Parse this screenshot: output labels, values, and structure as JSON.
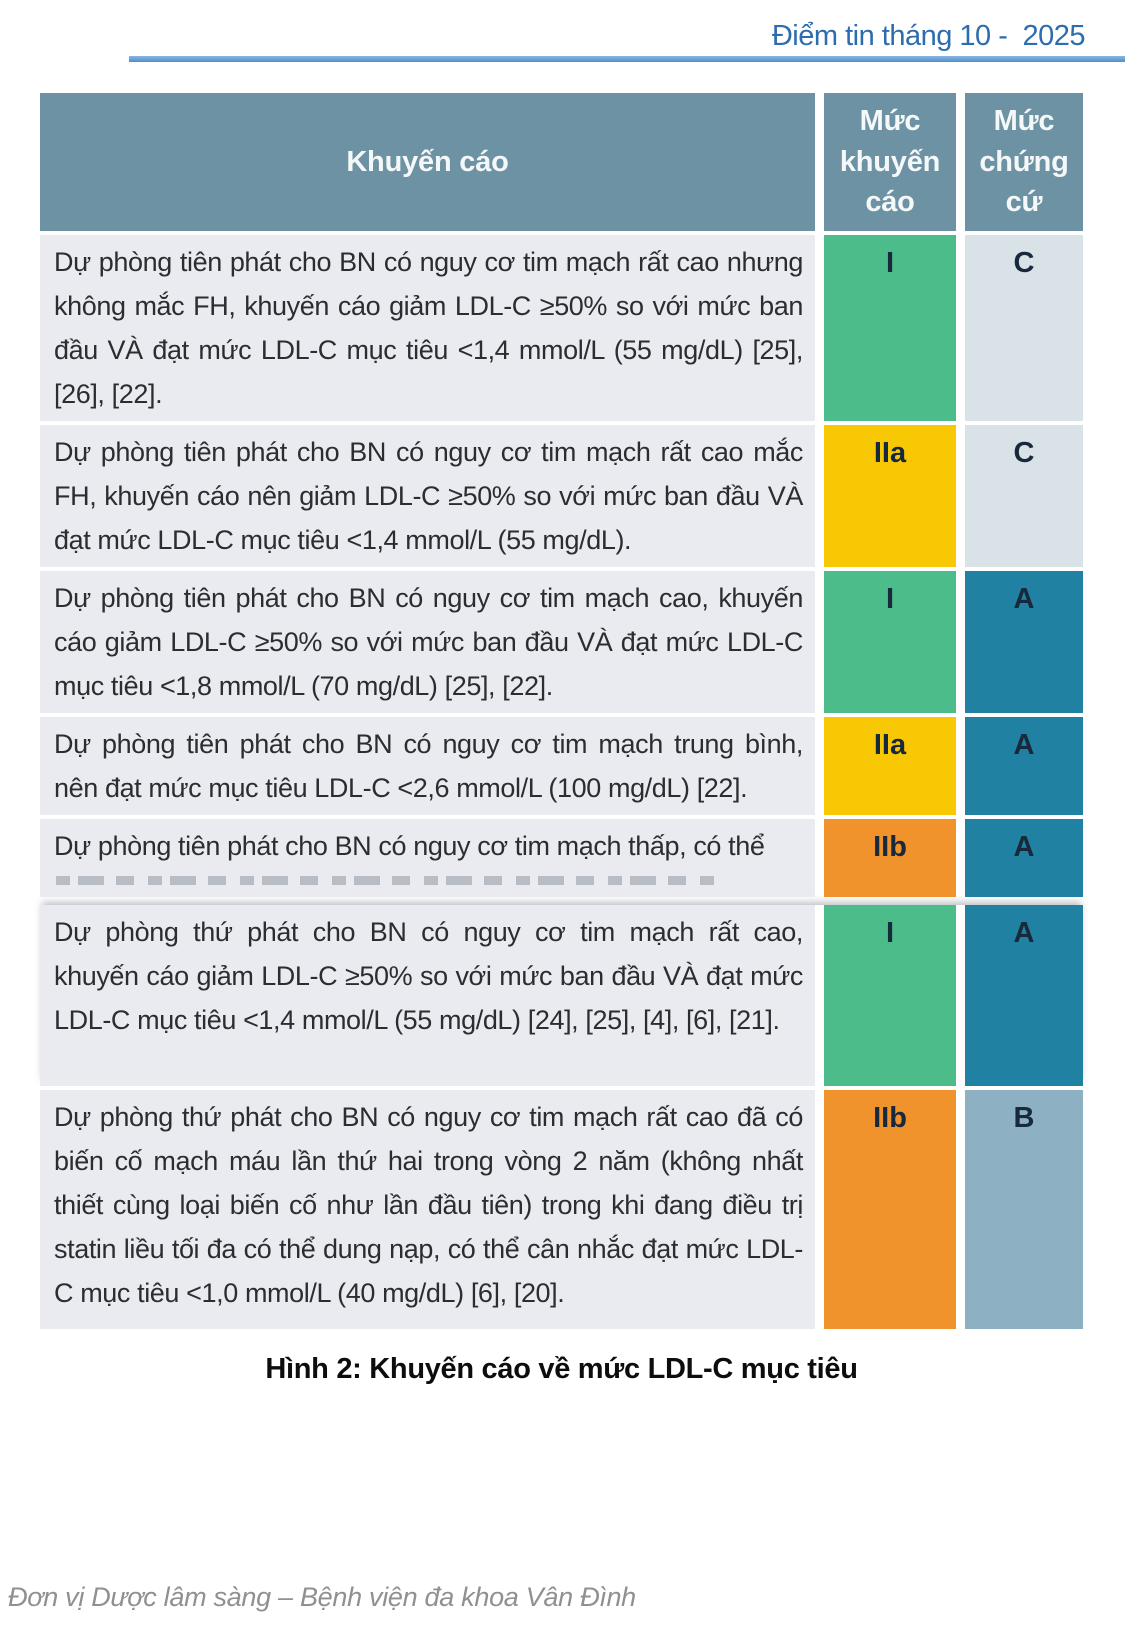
{
  "page": {
    "header_title": "Điểm tin tháng 10 -  2025",
    "caption": "Hình 2: Khuyến cáo về mức LDL-C mục tiêu",
    "footer": "Đơn vị Dược lâm sàng – Bệnh viện đa khoa Vân Đình"
  },
  "colors": {
    "title_blue": "#2d6daf",
    "rule_blue": "#5b9bd5",
    "table_header_bg": "#6d92a3",
    "row_bg": "#e9ebf1",
    "class_I_green": "#4dbc8b",
    "class_IIa_yellow": "#f9c805",
    "class_IIb_orange": "#f0932d",
    "evidence_A_teal": "#2181a2",
    "evidence_B_blue_gray": "#8db1c2",
    "evidence_C_light": "#d9e2e6"
  },
  "table": {
    "columns": [
      "Khuyến cáo",
      "Mức khuyến cáo",
      "Mức chứng cứ"
    ],
    "rows": [
      {
        "text": "Dự phòng tiên phát cho BN có nguy cơ tim mạch rất cao nhưng không mắc FH, khuyến cáo giảm LDL-C ≥50% so với mức ban đầu VÀ đạt mức LDL-C mục tiêu <1,4 mmol/L (55 mg/dL) [25], [26], [22].",
        "rec": "I",
        "ev": "C",
        "rec_color": "#4dbc8b",
        "ev_color": "#d9e2e6",
        "truncated": false
      },
      {
        "text": "Dự phòng tiên phát cho BN có nguy cơ tim mạch rất cao mắc FH, khuyến cáo nên giảm LDL-C ≥50% so với mức ban đầu VÀ đạt mức LDL-C mục tiêu <1,4 mmol/L (55 mg/dL).",
        "rec": "IIa",
        "ev": "C",
        "rec_color": "#f9c805",
        "ev_color": "#d9e2e6",
        "truncated": false
      },
      {
        "text": "Dự phòng tiên phát cho BN có nguy cơ tim mạch cao, khuyến cáo giảm LDL-C ≥50% so với mức ban đầu VÀ đạt mức LDL-C mục tiêu <1,8 mmol/L (70 mg/dL) [25], [22].",
        "rec": "I",
        "ev": "A",
        "rec_color": "#4dbc8b",
        "ev_color": "#2181a2",
        "truncated": false
      },
      {
        "text": "Dự phòng tiên phát cho BN có nguy cơ tim mạch trung bình, nên đạt mức mục tiêu LDL-C <2,6 mmol/L (100 mg/dL) [22].",
        "rec": "IIa",
        "ev": "A",
        "rec_color": "#f9c805",
        "ev_color": "#2181a2",
        "truncated": false
      },
      {
        "text": "Dự phòng tiên phát cho BN có nguy cơ tim mạch thấp, có thể",
        "rec": "IIb",
        "ev": "A",
        "rec_color": "#f0932d",
        "ev_color": "#2181a2",
        "truncated": true
      },
      {
        "text": "Dự phòng thứ phát cho BN có nguy cơ tim mạch rất cao, khuyến cáo giảm LDL-C ≥50% so với mức ban đầu VÀ đạt mức LDL-C mục tiêu <1,4 mmol/L (55 mg/dL) [24], [25], [4], [6], [21].",
        "rec": "I",
        "ev": "A",
        "rec_color": "#4dbc8b",
        "ev_color": "#2181a2",
        "truncated": false
      },
      {
        "text": "Dự phòng thứ phát cho BN có nguy cơ tim mạch rất cao đã có biến cố mạch máu lần thứ hai trong vòng 2 năm (không nhất thiết cùng loại biến cố như lần đầu tiên) trong khi đang điều trị statin liều tối đa có thể dung nạp, có thể cân nhắc đạt mức LDL-C mục tiêu <1,0 mmol/L (40 mg/dL) [6], [20].",
        "rec": "IIb",
        "ev": "B",
        "rec_color": "#f0932d",
        "ev_color": "#8db1c2",
        "truncated": false
      }
    ]
  }
}
